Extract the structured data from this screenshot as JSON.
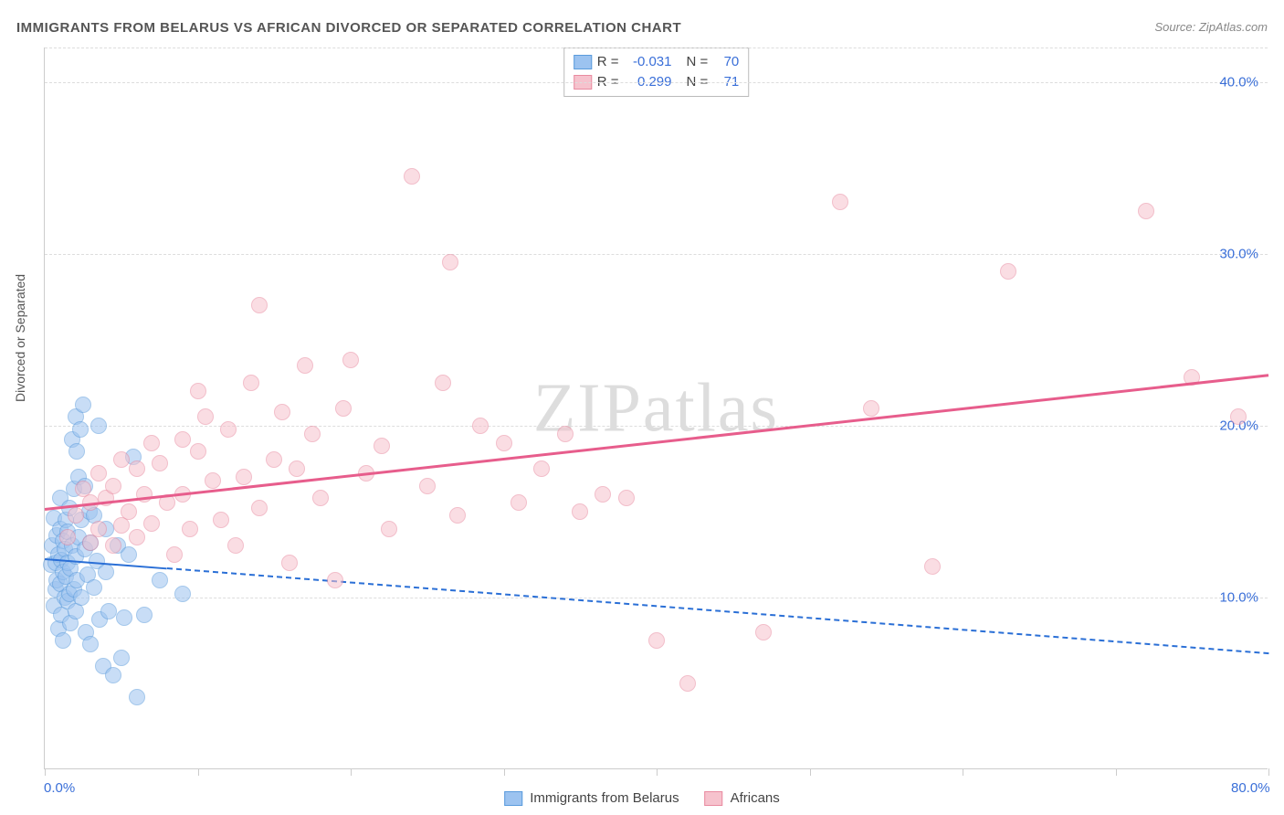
{
  "title": "IMMIGRANTS FROM BELARUS VS AFRICAN DIVORCED OR SEPARATED CORRELATION CHART",
  "source": "Source: ZipAtlas.com",
  "ylabel": "Divorced or Separated",
  "watermark": "ZIPatlas",
  "chart": {
    "type": "scatter",
    "xlim": [
      0,
      80
    ],
    "ylim": [
      0,
      42
    ],
    "x_ticks": [
      0,
      10,
      20,
      30,
      40,
      50,
      60,
      70,
      80
    ],
    "x_tick_labels_shown": {
      "0": "0.0%",
      "80": "80.0%"
    },
    "y_gridlines": [
      10,
      20,
      30,
      40
    ],
    "y_tick_labels": {
      "10": "10.0%",
      "20": "20.0%",
      "30": "30.0%",
      "40": "40.0%"
    },
    "background_color": "#ffffff",
    "grid_color": "#dddddd",
    "axis_color": "#cccccc",
    "tick_label_color": "#3a6fd8",
    "axis_label_color": "#555555",
    "marker_radius": 9,
    "marker_opacity": 0.55,
    "series": [
      {
        "id": "belarus",
        "name": "Immigrants from Belarus",
        "marker_fill": "#9cc3f0",
        "marker_stroke": "#5a9bdc",
        "trend": {
          "color": "#2a6fd6",
          "width": 2,
          "solid_until_x": 8,
          "y_start": 12.3,
          "y_end": 6.8
        },
        "R": "-0.031",
        "N": "70",
        "points": [
          [
            0.4,
            11.9
          ],
          [
            0.5,
            13.0
          ],
          [
            0.6,
            14.6
          ],
          [
            0.6,
            9.5
          ],
          [
            0.7,
            10.5
          ],
          [
            0.7,
            12.0
          ],
          [
            0.8,
            13.6
          ],
          [
            0.8,
            11.0
          ],
          [
            0.9,
            12.5
          ],
          [
            0.9,
            8.2
          ],
          [
            1.0,
            14.0
          ],
          [
            1.0,
            10.8
          ],
          [
            1.0,
            15.8
          ],
          [
            1.1,
            12.2
          ],
          [
            1.1,
            9.0
          ],
          [
            1.2,
            11.5
          ],
          [
            1.2,
            13.3
          ],
          [
            1.2,
            7.5
          ],
          [
            1.3,
            10.0
          ],
          [
            1.3,
            12.8
          ],
          [
            1.4,
            11.2
          ],
          [
            1.4,
            14.5
          ],
          [
            1.5,
            9.8
          ],
          [
            1.5,
            12.0
          ],
          [
            1.5,
            13.8
          ],
          [
            1.6,
            10.2
          ],
          [
            1.6,
            15.2
          ],
          [
            1.7,
            11.7
          ],
          [
            1.7,
            8.5
          ],
          [
            1.8,
            13.0
          ],
          [
            1.8,
            19.2
          ],
          [
            1.9,
            10.5
          ],
          [
            1.9,
            16.3
          ],
          [
            2.0,
            12.4
          ],
          [
            2.0,
            9.2
          ],
          [
            2.0,
            20.5
          ],
          [
            2.1,
            11.0
          ],
          [
            2.1,
            18.5
          ],
          [
            2.2,
            17.0
          ],
          [
            2.2,
            13.5
          ],
          [
            2.3,
            19.8
          ],
          [
            2.4,
            10.0
          ],
          [
            2.4,
            14.5
          ],
          [
            2.5,
            21.2
          ],
          [
            2.6,
            12.8
          ],
          [
            2.6,
            16.5
          ],
          [
            2.7,
            8.0
          ],
          [
            2.8,
            11.3
          ],
          [
            2.9,
            15.0
          ],
          [
            3.0,
            13.2
          ],
          [
            3.0,
            7.3
          ],
          [
            3.2,
            14.8
          ],
          [
            3.2,
            10.6
          ],
          [
            3.4,
            12.1
          ],
          [
            3.5,
            20.0
          ],
          [
            3.6,
            8.7
          ],
          [
            3.8,
            6.0
          ],
          [
            4.0,
            11.5
          ],
          [
            4.0,
            14.0
          ],
          [
            4.2,
            9.2
          ],
          [
            4.5,
            5.5
          ],
          [
            4.8,
            13.0
          ],
          [
            5.0,
            6.5
          ],
          [
            5.2,
            8.8
          ],
          [
            5.5,
            12.5
          ],
          [
            5.8,
            18.2
          ],
          [
            6.0,
            4.2
          ],
          [
            6.5,
            9.0
          ],
          [
            7.5,
            11.0
          ],
          [
            9.0,
            10.2
          ]
        ]
      },
      {
        "id": "africans",
        "name": "Africans",
        "marker_fill": "#f6c2cd",
        "marker_stroke": "#e98aa0",
        "trend": {
          "color": "#e75d8c",
          "width": 2.5,
          "solid_until_x": 80,
          "y_start": 15.2,
          "y_end": 23.0
        },
        "R": "0.299",
        "N": "71",
        "points": [
          [
            1.5,
            13.5
          ],
          [
            2.0,
            14.8
          ],
          [
            2.5,
            16.3
          ],
          [
            3.0,
            13.2
          ],
          [
            3.0,
            15.5
          ],
          [
            3.5,
            14.0
          ],
          [
            3.5,
            17.2
          ],
          [
            4.0,
            15.8
          ],
          [
            4.5,
            16.5
          ],
          [
            4.5,
            13.0
          ],
          [
            5.0,
            14.2
          ],
          [
            5.0,
            18.0
          ],
          [
            5.5,
            15.0
          ],
          [
            6.0,
            17.5
          ],
          [
            6.0,
            13.5
          ],
          [
            6.5,
            16.0
          ],
          [
            7.0,
            19.0
          ],
          [
            7.0,
            14.3
          ],
          [
            7.5,
            17.8
          ],
          [
            8.0,
            15.5
          ],
          [
            8.5,
            12.5
          ],
          [
            9.0,
            19.2
          ],
          [
            9.0,
            16.0
          ],
          [
            9.5,
            14.0
          ],
          [
            10.0,
            18.5
          ],
          [
            10.0,
            22.0
          ],
          [
            10.5,
            20.5
          ],
          [
            11.0,
            16.8
          ],
          [
            11.5,
            14.5
          ],
          [
            12.0,
            19.8
          ],
          [
            12.5,
            13.0
          ],
          [
            13.0,
            17.0
          ],
          [
            13.5,
            22.5
          ],
          [
            14.0,
            27.0
          ],
          [
            14.0,
            15.2
          ],
          [
            15.0,
            18.0
          ],
          [
            15.5,
            20.8
          ],
          [
            16.0,
            12.0
          ],
          [
            16.5,
            17.5
          ],
          [
            17.0,
            23.5
          ],
          [
            17.5,
            19.5
          ],
          [
            18.0,
            15.8
          ],
          [
            19.0,
            11.0
          ],
          [
            19.5,
            21.0
          ],
          [
            20.0,
            23.8
          ],
          [
            21.0,
            17.2
          ],
          [
            22.0,
            18.8
          ],
          [
            22.5,
            14.0
          ],
          [
            24.0,
            34.5
          ],
          [
            25.0,
            16.5
          ],
          [
            26.0,
            22.5
          ],
          [
            26.5,
            29.5
          ],
          [
            27.0,
            14.8
          ],
          [
            28.5,
            20.0
          ],
          [
            30.0,
            19.0
          ],
          [
            31.0,
            15.5
          ],
          [
            32.5,
            17.5
          ],
          [
            34.0,
            19.5
          ],
          [
            35.0,
            15.0
          ],
          [
            36.5,
            16.0
          ],
          [
            38.0,
            15.8
          ],
          [
            40.0,
            7.5
          ],
          [
            42.0,
            5.0
          ],
          [
            47.0,
            8.0
          ],
          [
            52.0,
            33.0
          ],
          [
            54.0,
            21.0
          ],
          [
            58.0,
            11.8
          ],
          [
            63.0,
            29.0
          ],
          [
            72.0,
            32.5
          ],
          [
            75.0,
            22.8
          ],
          [
            78.0,
            20.5
          ]
        ]
      }
    ]
  },
  "legend_stats": {
    "r_label": "R =",
    "n_label": "N ="
  },
  "bottom_legend_items": [
    {
      "series": "belarus"
    },
    {
      "series": "africans"
    }
  ]
}
